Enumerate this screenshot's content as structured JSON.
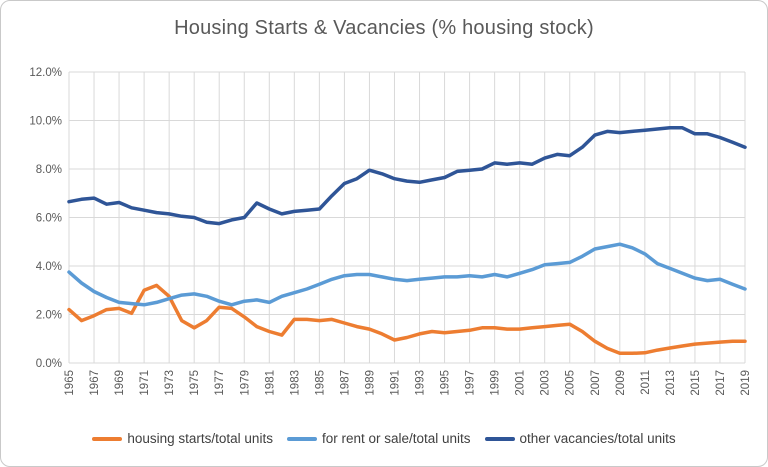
{
  "window": {
    "background": "#ffffff",
    "border_color": "#c9c9c9"
  },
  "chart_data": {
    "type": "line",
    "title": "Housing Starts & Vacancies (% housing stock)",
    "xlabel": "",
    "ylabel": "",
    "ylim": [
      0,
      12
    ],
    "y_tick_step": 2,
    "y_tick_labels": [
      "0.0%",
      "2.0%",
      "4.0%",
      "6.0%",
      "8.0%",
      "10.0%",
      "12.0%"
    ],
    "x_tick_labels": [
      "1965",
      "1967",
      "1969",
      "1971",
      "1973",
      "1975",
      "1977",
      "1979",
      "1981",
      "1983",
      "1985",
      "1987",
      "1989",
      "1991",
      "1993",
      "1995",
      "1997",
      "1999",
      "2001",
      "2003",
      "2005",
      "2007",
      "2009",
      "2011",
      "2013",
      "2015",
      "2017",
      "2019"
    ],
    "x": [
      1965,
      1966,
      1967,
      1968,
      1969,
      1970,
      1971,
      1972,
      1973,
      1974,
      1975,
      1976,
      1977,
      1978,
      1979,
      1980,
      1981,
      1982,
      1983,
      1984,
      1985,
      1986,
      1987,
      1988,
      1989,
      1990,
      1991,
      1992,
      1993,
      1994,
      1995,
      1996,
      1997,
      1998,
      1999,
      2000,
      2001,
      2002,
      2003,
      2004,
      2005,
      2006,
      2007,
      2008,
      2009,
      2010,
      2011,
      2012,
      2013,
      2014,
      2015,
      2016,
      2017,
      2018,
      2019
    ],
    "grid": true,
    "gridline_color": "#d9d9d9",
    "axis_label_color": "#595959",
    "title_color": "#595959",
    "legend_position": "bottom",
    "legend_text_color": "#404040",
    "series": [
      {
        "name": "housing starts/total units",
        "color": "#ED7D31",
        "values": [
          2.2,
          1.75,
          1.95,
          2.2,
          2.25,
          2.05,
          3.0,
          3.2,
          2.75,
          1.75,
          1.45,
          1.75,
          2.3,
          2.25,
          1.9,
          1.5,
          1.3,
          1.15,
          1.8,
          1.8,
          1.75,
          1.8,
          1.65,
          1.5,
          1.4,
          1.2,
          0.95,
          1.05,
          1.2,
          1.3,
          1.25,
          1.3,
          1.35,
          1.45,
          1.45,
          1.4,
          1.4,
          1.45,
          1.5,
          1.55,
          1.6,
          1.3,
          0.9,
          0.6,
          0.4,
          0.4,
          0.42,
          0.53,
          0.62,
          0.7,
          0.78,
          0.82,
          0.86,
          0.9,
          0.9
        ]
      },
      {
        "name": "for rent or sale/total units",
        "color": "#5B9BD5",
        "values": [
          3.75,
          3.3,
          2.95,
          2.7,
          2.5,
          2.45,
          2.4,
          2.5,
          2.65,
          2.8,
          2.85,
          2.75,
          2.55,
          2.4,
          2.55,
          2.6,
          2.5,
          2.75,
          2.9,
          3.05,
          3.25,
          3.45,
          3.6,
          3.65,
          3.65,
          3.55,
          3.45,
          3.4,
          3.45,
          3.5,
          3.55,
          3.55,
          3.6,
          3.55,
          3.65,
          3.55,
          3.7,
          3.85,
          4.05,
          4.1,
          4.15,
          4.4,
          4.7,
          4.8,
          4.9,
          4.75,
          4.5,
          4.1,
          3.9,
          3.7,
          3.5,
          3.4,
          3.45,
          3.25,
          3.05
        ]
      },
      {
        "name": "other vacancies/total units",
        "color": "#2F5597",
        "values": [
          6.65,
          6.75,
          6.8,
          6.55,
          6.62,
          6.4,
          6.3,
          6.2,
          6.15,
          6.05,
          6.0,
          5.8,
          5.75,
          5.9,
          6.0,
          6.6,
          6.35,
          6.15,
          6.25,
          6.3,
          6.35,
          6.9,
          7.4,
          7.6,
          7.95,
          7.8,
          7.6,
          7.5,
          7.45,
          7.55,
          7.65,
          7.9,
          7.95,
          8.0,
          8.25,
          8.2,
          8.25,
          8.2,
          8.45,
          8.6,
          8.55,
          8.9,
          9.4,
          9.55,
          9.5,
          9.55,
          9.6,
          9.65,
          9.7,
          9.7,
          9.45,
          9.45,
          9.3,
          9.1,
          8.9
        ]
      }
    ]
  }
}
